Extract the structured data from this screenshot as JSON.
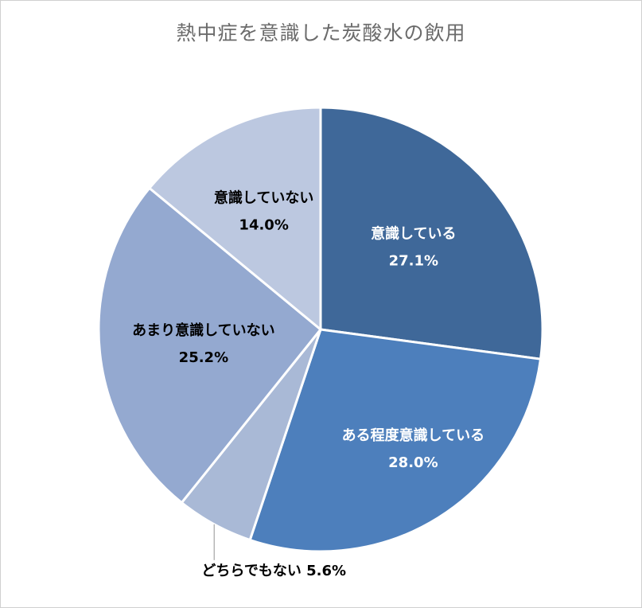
{
  "chart_data": {
    "type": "pie",
    "title": "熱中症を意識した炭酸水の飲用",
    "slices": [
      {
        "name": "意識している",
        "value": 27.1,
        "label": "27.1%",
        "color": "#3f6899",
        "text_color": "#ffffff"
      },
      {
        "name": "ある程度意識している",
        "value": 28.0,
        "label": "28.0%",
        "color": "#4d7fbc",
        "text_color": "#ffffff"
      },
      {
        "name": "どちらでもない",
        "value": 5.6,
        "label": "5.6%",
        "color": "#a9b9d6",
        "text_color": "#000000"
      },
      {
        "name": "あまり意識していない",
        "value": 25.2,
        "label": "25.2%",
        "color": "#94a9d0",
        "text_color": "#000000"
      },
      {
        "name": "意識していない",
        "value": 14.0,
        "label": "14.0%",
        "color": "#bcc8e0",
        "text_color": "#000000"
      }
    ]
  }
}
